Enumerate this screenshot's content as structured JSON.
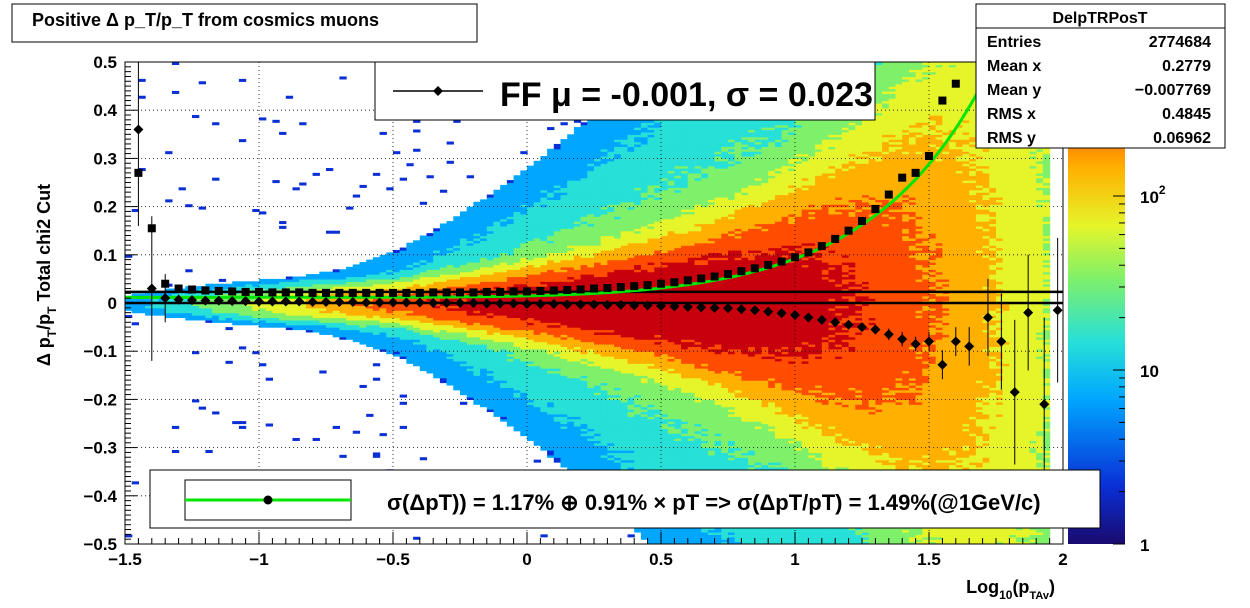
{
  "chart_data": {
    "type": "heatmap",
    "title": "Positive Δ p_T/p_T from cosmics muons",
    "xlabel": "Log10(pTAv)",
    "ylabel": "Δ p_T/p_T   Total chi2 Cut",
    "xlim": [
      -1.5,
      2
    ],
    "ylim": [
      -0.5,
      0.5
    ],
    "z_scale": "log",
    "z_ticks": [
      1,
      10,
      100
    ],
    "z_tick_labels": [
      "1",
      "10",
      "10²"
    ],
    "grid": true,
    "x_ticks": [
      -1.5,
      -1,
      -0.5,
      0,
      0.5,
      1,
      1.5,
      2
    ],
    "x_tick_labels": [
      "−1.5",
      "−1",
      "−0.5",
      "0",
      "0.5",
      "1",
      "1.5",
      "2"
    ],
    "y_ticks": [
      -0.5,
      -0.4,
      -0.3,
      -0.2,
      -0.1,
      0,
      0.1,
      0.2,
      0.3,
      0.4,
      0.5
    ],
    "y_tick_labels": [
      "−0.5",
      "−0.4",
      "−0.3",
      "−0.2",
      "−0.1",
      "0",
      "0.1",
      "0.2",
      "0.3",
      "0.4",
      "0.5"
    ],
    "stats_box": {
      "name": "DelpTRPosT",
      "rows": [
        {
          "label": "Entries",
          "value": "2774684"
        },
        {
          "label": "Mean x",
          "value": "0.2779"
        },
        {
          "label": "Mean y",
          "value": "−0.007769"
        },
        {
          "label": "RMS x",
          "value": "0.4845"
        },
        {
          "label": "RMS y",
          "value": "0.06962"
        }
      ]
    },
    "legend_top": "FF μ = -0.001, σ =   0.023",
    "legend_bottom": "σ(ΔpT)) =  1.17% ⊕  0.91% × pT => σ(ΔpT/pT) =  1.49%(@1GeV/c)",
    "sigma_points": {
      "x": [
        -1.45,
        -1.4,
        -1.35,
        -1.3,
        -1.25,
        -1.2,
        -1.15,
        -1.1,
        -1.05,
        -1.0,
        -0.95,
        -0.9,
        -0.85,
        -0.8,
        -0.75,
        -0.7,
        -0.65,
        -0.6,
        -0.55,
        -0.5,
        -0.45,
        -0.4,
        -0.35,
        -0.3,
        -0.25,
        -0.2,
        -0.15,
        -0.1,
        -0.05,
        0.0,
        0.05,
        0.1,
        0.15,
        0.2,
        0.25,
        0.3,
        0.35,
        0.4,
        0.45,
        0.5,
        0.55,
        0.6,
        0.65,
        0.7,
        0.75,
        0.8,
        0.85,
        0.9,
        0.95,
        1.0,
        1.05,
        1.1,
        1.15,
        1.2,
        1.25,
        1.3,
        1.35,
        1.4,
        1.45,
        1.5,
        1.55,
        1.6
      ],
      "y": [
        0.27,
        0.155,
        0.04,
        0.03,
        0.028,
        0.026,
        0.025,
        0.024,
        0.023,
        0.023,
        0.022,
        0.022,
        0.022,
        0.021,
        0.021,
        0.021,
        0.021,
        0.021,
        0.021,
        0.021,
        0.021,
        0.021,
        0.022,
        0.022,
        0.022,
        0.022,
        0.023,
        0.023,
        0.024,
        0.024,
        0.025,
        0.026,
        0.027,
        0.028,
        0.03,
        0.031,
        0.033,
        0.035,
        0.037,
        0.04,
        0.043,
        0.047,
        0.051,
        0.055,
        0.06,
        0.066,
        0.072,
        0.079,
        0.086,
        0.095,
        0.105,
        0.118,
        0.133,
        0.15,
        0.17,
        0.195,
        0.225,
        0.26,
        0.27,
        0.305,
        0.42,
        0.455
      ]
    },
    "mean_points": {
      "x": [
        -1.45,
        -1.4,
        -1.35,
        -1.3,
        -1.25,
        -1.2,
        -1.15,
        -1.1,
        -1.05,
        -1.0,
        -0.95,
        -0.9,
        -0.85,
        -0.8,
        -0.75,
        -0.7,
        -0.65,
        -0.6,
        -0.55,
        -0.5,
        -0.45,
        -0.4,
        -0.35,
        -0.3,
        -0.25,
        -0.2,
        -0.15,
        -0.1,
        -0.05,
        0.0,
        0.05,
        0.1,
        0.15,
        0.2,
        0.25,
        0.3,
        0.35,
        0.4,
        0.45,
        0.5,
        0.55,
        0.6,
        0.65,
        0.7,
        0.75,
        0.8,
        0.85,
        0.9,
        0.95,
        1.0,
        1.05,
        1.1,
        1.15,
        1.2,
        1.25,
        1.3,
        1.35,
        1.4,
        1.45,
        1.5,
        1.55,
        1.6,
        1.65,
        1.72,
        1.77,
        1.82,
        1.87,
        1.93,
        1.98
      ],
      "y": [
        0.36,
        0.03,
        0.01,
        0.007,
        0.006,
        0.005,
        0.005,
        0.004,
        0.004,
        0.003,
        0.003,
        0.003,
        0.003,
        0.002,
        0.002,
        0.002,
        0.002,
        0.001,
        0.001,
        0.001,
        0.001,
        0.001,
        0.0,
        0.0,
        0.0,
        0.0,
        -0.001,
        -0.001,
        -0.001,
        -0.002,
        -0.002,
        -0.002,
        -0.003,
        -0.003,
        -0.003,
        -0.004,
        -0.004,
        -0.005,
        -0.005,
        -0.006,
        -0.007,
        -0.008,
        -0.009,
        -0.01,
        -0.011,
        -0.013,
        -0.015,
        -0.018,
        -0.021,
        -0.025,
        -0.03,
        -0.035,
        -0.04,
        -0.045,
        -0.05,
        -0.055,
        -0.065,
        -0.075,
        -0.085,
        -0.08,
        -0.128,
        -0.08,
        -0.09,
        -0.03,
        -0.08,
        -0.185,
        -0.02,
        -0.21,
        -0.015
      ],
      "yerr": [
        0.2,
        0.15,
        0.05,
        0.01,
        0.008,
        0.006,
        0.005,
        0.004,
        0.003,
        0.003,
        0.002,
        0.002,
        0.002,
        0.002,
        0.002,
        0.002,
        0.002,
        0.002,
        0.002,
        0.002,
        0.002,
        0.002,
        0.002,
        0.002,
        0.002,
        0.002,
        0.002,
        0.002,
        0.002,
        0.002,
        0.002,
        0.002,
        0.002,
        0.002,
        0.002,
        0.002,
        0.002,
        0.002,
        0.002,
        0.002,
        0.002,
        0.002,
        0.002,
        0.002,
        0.003,
        0.003,
        0.003,
        0.004,
        0.004,
        0.005,
        0.005,
        0.006,
        0.007,
        0.008,
        0.009,
        0.01,
        0.012,
        0.015,
        0.015,
        0.02,
        0.03,
        0.03,
        0.04,
        0.08,
        0.1,
        0.15,
        0.12,
        0.18,
        0.15
      ]
    },
    "fit_curve": {
      "a": 0.0117,
      "b": 0.0091
    },
    "heatmap_model": {
      "width_base": 0.018,
      "width_slope": 0.065,
      "center_x": 0.45,
      "spread_x": 0.6
    }
  },
  "colors": {
    "fit_line": "#00e600",
    "marker": "#000000",
    "palette": [
      "#1a0a6e",
      "#0a2fd6",
      "#00a6ff",
      "#27e0d8",
      "#7ff06a",
      "#e5f52a",
      "#ffb000",
      "#ff4d00",
      "#c8000e"
    ]
  }
}
